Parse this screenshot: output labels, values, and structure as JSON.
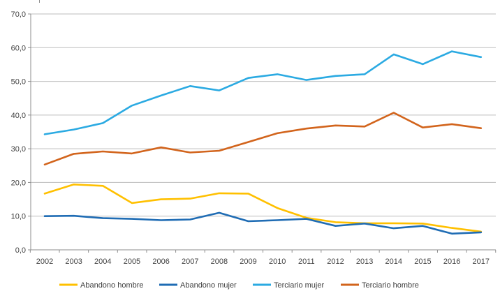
{
  "chart_data": {
    "type": "line",
    "title": "",
    "categories": [
      "2002",
      "2003",
      "2004",
      "2005",
      "2006",
      "2007",
      "2008",
      "2009",
      "2010",
      "2011",
      "2012",
      "2013",
      "2014",
      "2015",
      "2016",
      "2017"
    ],
    "series": [
      {
        "name": "Abandono hombre",
        "color": "#FFC000",
        "values": [
          16.7,
          19.4,
          19.0,
          13.9,
          15.0,
          15.2,
          16.8,
          16.7,
          12.4,
          9.5,
          8.2,
          7.9,
          7.9,
          7.8,
          6.5,
          5.4
        ]
      },
      {
        "name": "Abandono mujer",
        "color": "#1F6CB4",
        "values": [
          10.0,
          10.1,
          9.4,
          9.2,
          8.8,
          9.0,
          11.0,
          8.5,
          8.8,
          9.2,
          7.1,
          7.8,
          6.4,
          7.1,
          4.8,
          5.2
        ]
      },
      {
        "name": "Terciario mujer",
        "color": "#2BAAE2",
        "values": [
          34.3,
          35.7,
          37.6,
          42.8,
          45.8,
          48.6,
          47.3,
          51.0,
          52.1,
          50.4,
          51.6,
          52.1,
          58.0,
          55.1,
          58.9,
          57.2
        ]
      },
      {
        "name": "Terciario hombre",
        "color": "#D2641C",
        "values": [
          25.3,
          28.5,
          29.2,
          28.6,
          30.4,
          28.9,
          29.4,
          32.0,
          34.6,
          36.0,
          36.9,
          36.6,
          40.7,
          36.3,
          37.3,
          36.1
        ]
      }
    ],
    "y_axis": {
      "min": 0,
      "max": 70,
      "step": 10,
      "tick_labels": [
        "0,0",
        "10,0",
        "20,0",
        "30,0",
        "40,0",
        "50,0",
        "60,0",
        "70,0"
      ]
    },
    "x_axis": {
      "tick_labels": [
        "2002",
        "2003",
        "2004",
        "2005",
        "2006",
        "2007",
        "2008",
        "2009",
        "2010",
        "2011",
        "2012",
        "2013",
        "2014",
        "2015",
        "2016",
        "2017"
      ]
    },
    "legend": {
      "position": "bottom",
      "entries": [
        "Abandono hombre",
        "Abandono mujer",
        "Terciario mujer",
        "Terciario hombre"
      ]
    },
    "grid": true,
    "style": {
      "gridline_color": "#BDBDBD",
      "axis_color": "#8E8E8E",
      "text_color": "#404040",
      "background_color": "#FFFFFF"
    }
  }
}
